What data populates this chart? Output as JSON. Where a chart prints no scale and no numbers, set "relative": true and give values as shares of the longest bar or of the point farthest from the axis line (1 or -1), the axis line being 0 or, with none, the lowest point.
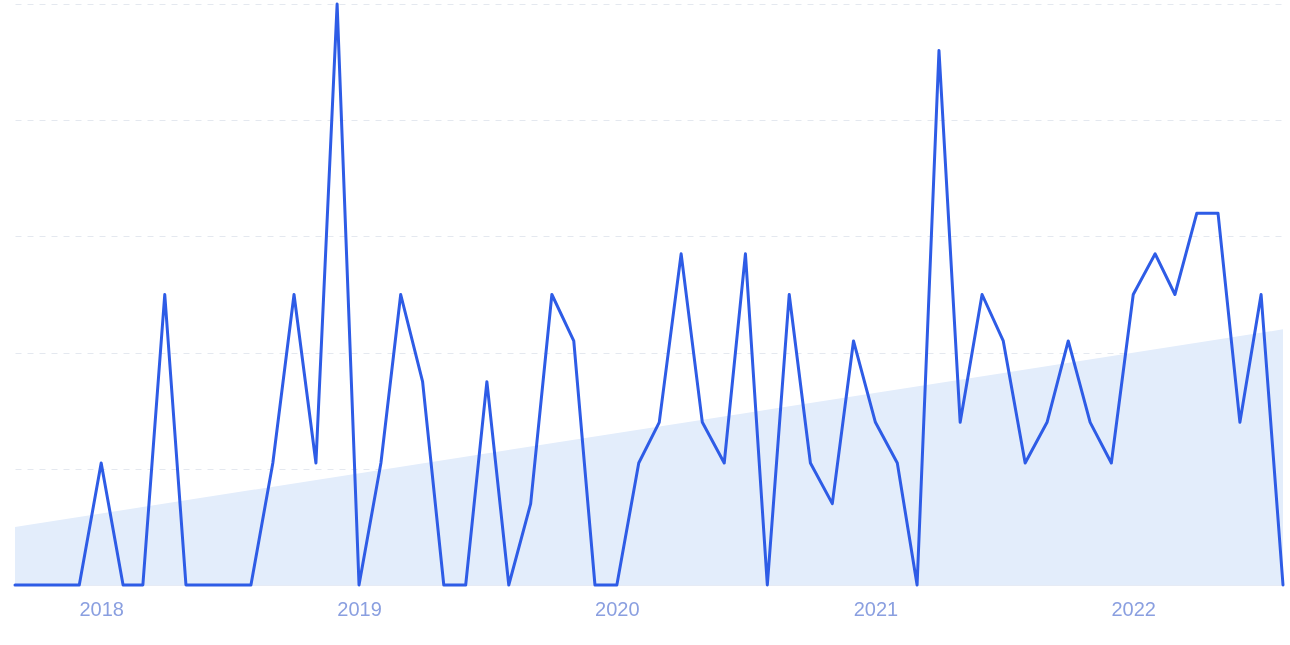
{
  "chart_data": {
    "type": "line",
    "relative": true,
    "grid": "y",
    "marker": "none",
    "line_style": "solid",
    "xlim": [
      "2017-09",
      "2022-08"
    ],
    "xticks": [
      "2018",
      "2019",
      "2020",
      "2021",
      "2022"
    ],
    "series": [
      {
        "type": "area",
        "color": "#e3edfb",
        "x": [
          "2017-09",
          "2022-08"
        ],
        "values": [
          0.1,
          0.44
        ]
      },
      {
        "color": "#2e5ce6",
        "x": [
          "2017-09",
          "2017-10",
          "2017-11",
          "2017-12",
          "2018-01",
          "2018-02",
          "2018-03",
          "2018-04",
          "2018-05",
          "2018-06",
          "2018-07",
          "2018-08",
          "2018-09",
          "2018-10",
          "2018-11",
          "2018-12",
          "2019-01",
          "2019-02",
          "2019-03",
          "2019-04",
          "2019-05",
          "2019-06",
          "2019-07",
          "2019-08",
          "2019-09",
          "2019-10",
          "2019-11",
          "2019-12",
          "2020-01",
          "2020-02",
          "2020-03",
          "2020-04",
          "2020-05",
          "2020-06",
          "2020-07",
          "2020-08",
          "2020-09",
          "2020-10",
          "2020-11",
          "2020-12",
          "2021-01",
          "2021-02",
          "2021-03",
          "2021-04",
          "2021-05",
          "2021-06",
          "2021-07",
          "2021-08",
          "2021-09",
          "2021-10",
          "2021-11",
          "2021-12",
          "2022-01",
          "2022-02",
          "2022-03",
          "2022-04",
          "2022-05",
          "2022-06",
          "2022-07",
          "2022-08"
        ],
        "values": [
          0,
          0,
          0,
          0,
          0.21,
          0,
          0,
          0.5,
          0,
          0,
          0,
          0,
          0.21,
          0.5,
          0.21,
          1,
          0,
          0.21,
          0.5,
          0.35,
          0,
          0,
          0.35,
          0,
          0.14,
          0.5,
          0.42,
          0,
          0,
          0.21,
          0.28,
          0.57,
          0.28,
          0.21,
          0.57,
          0,
          0.5,
          0.21,
          0.14,
          0.42,
          0.28,
          0.21,
          0,
          0.92,
          0.28,
          0.5,
          0.42,
          0.21,
          0.28,
          0.42,
          0.28,
          0.21,
          0.5,
          0.57,
          0.5,
          0.64,
          0.64,
          0.28,
          0.5,
          0
        ]
      }
    ]
  }
}
